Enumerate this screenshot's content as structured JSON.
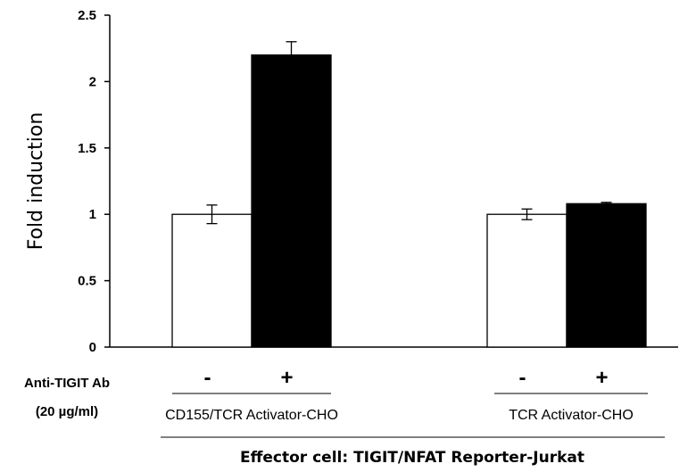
{
  "chart_data": {
    "type": "bar",
    "ylabel": "Fold induction",
    "ylim": [
      0,
      2.5
    ],
    "yticks": [
      "0",
      "0.5",
      "1",
      "1.5",
      "2",
      "2.5"
    ],
    "grid": false,
    "treatment_label_line1": "Anti-TIGIT Ab",
    "treatment_label_line2": "(20 µg/ml)",
    "groups": [
      {
        "label": "CD155/TCR  Activator-CHO",
        "bars": [
          {
            "sign": "-",
            "value": 1.0,
            "error": 0.07,
            "fill": "#ffffff"
          },
          {
            "sign": "+",
            "value": 2.2,
            "error": 0.1,
            "fill": "#000000"
          }
        ]
      },
      {
        "label": "TCR  Activator-CHO",
        "bars": [
          {
            "sign": "-",
            "value": 1.0,
            "error": 0.04,
            "fill": "#ffffff"
          },
          {
            "sign": "+",
            "value": 1.08,
            "error": 0.01,
            "fill": "#000000"
          }
        ]
      }
    ],
    "footer": "Effector cell: TIGIT/NFAT Reporter-Jurkat"
  }
}
